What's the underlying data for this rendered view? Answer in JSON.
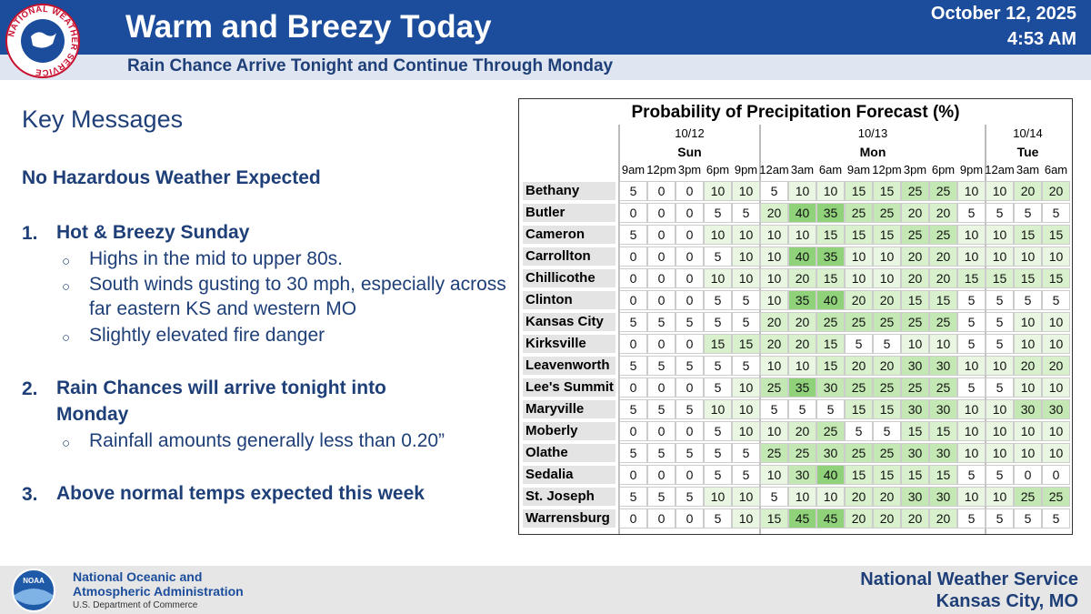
{
  "header": {
    "logo_text": "NATIONAL WEATHER SERVICE",
    "title": "Warm and Breezy Today",
    "subtitle": "Rain Chance Arrive Tonight and Continue Through Monday",
    "date": "October 12, 2025",
    "time": "4:53 AM"
  },
  "key_messages": {
    "title": "Key Messages",
    "headline": "No Hazardous Weather Expected",
    "items": [
      {
        "number": "1.",
        "text": "Hot & Breezy Sunday",
        "bullets": [
          "Highs in the mid to upper 80s.",
          "South winds gusting to 30 mph, especially across far eastern KS and western MO",
          "Slightly elevated fire danger"
        ]
      },
      {
        "number": "2.",
        "text": "Rain Chances will arrive tonight into Monday",
        "bullets": [
          "Rainfall amounts generally less than 0.20”"
        ]
      },
      {
        "number": "3.",
        "text": "Above normal temps expected this week",
        "bullets": []
      }
    ]
  },
  "table": {
    "title": "Probability of Precipitation Forecast (%)",
    "groups": [
      {
        "date": "10/12",
        "day": "Sun",
        "hours": [
          "9am",
          "12pm",
          "3pm",
          "6pm",
          "9pm"
        ]
      },
      {
        "date": "10/13",
        "day": "Mon",
        "hours": [
          "12am",
          "3am",
          "6am",
          "9am",
          "12pm",
          "3pm",
          "6pm",
          "9pm"
        ]
      },
      {
        "date": "10/14",
        "day": "Tue",
        "hours": [
          "12am",
          "3am",
          "6am"
        ]
      }
    ],
    "rows": [
      {
        "name": "Bethany",
        "values": [
          5,
          0,
          0,
          10,
          10,
          5,
          10,
          10,
          15,
          15,
          25,
          25,
          10,
          10,
          20,
          20
        ]
      },
      {
        "name": "Butler",
        "values": [
          0,
          0,
          0,
          5,
          5,
          20,
          40,
          35,
          25,
          25,
          20,
          20,
          5,
          5,
          5,
          5
        ]
      },
      {
        "name": "Cameron",
        "values": [
          5,
          0,
          0,
          10,
          10,
          10,
          10,
          15,
          15,
          15,
          25,
          25,
          10,
          10,
          15,
          15
        ]
      },
      {
        "name": "Carrollton",
        "values": [
          0,
          0,
          0,
          5,
          10,
          10,
          40,
          35,
          10,
          10,
          20,
          20,
          10,
          10,
          10,
          10
        ]
      },
      {
        "name": "Chillicothe",
        "values": [
          0,
          0,
          0,
          10,
          10,
          10,
          20,
          15,
          10,
          10,
          20,
          20,
          15,
          15,
          15,
          15
        ]
      },
      {
        "name": "Clinton",
        "values": [
          0,
          0,
          0,
          5,
          5,
          10,
          35,
          40,
          20,
          20,
          15,
          15,
          5,
          5,
          5,
          5
        ]
      },
      {
        "name": "Kansas City",
        "values": [
          5,
          5,
          5,
          5,
          5,
          20,
          20,
          25,
          25,
          25,
          25,
          25,
          5,
          5,
          10,
          10
        ]
      },
      {
        "name": "Kirksville",
        "values": [
          0,
          0,
          0,
          15,
          15,
          20,
          20,
          15,
          5,
          5,
          10,
          10,
          5,
          5,
          10,
          10
        ]
      },
      {
        "name": "Leavenworth",
        "values": [
          5,
          5,
          5,
          5,
          5,
          10,
          10,
          15,
          20,
          20,
          30,
          30,
          10,
          10,
          20,
          20
        ]
      },
      {
        "name": "Lee's Summit",
        "values": [
          0,
          0,
          0,
          5,
          10,
          25,
          35,
          30,
          25,
          25,
          25,
          25,
          5,
          5,
          10,
          10
        ]
      },
      {
        "name": "Maryville",
        "values": [
          5,
          5,
          5,
          10,
          10,
          5,
          5,
          5,
          15,
          15,
          30,
          30,
          10,
          10,
          30,
          30
        ]
      },
      {
        "name": "Moberly",
        "values": [
          0,
          0,
          0,
          5,
          10,
          10,
          20,
          25,
          5,
          5,
          15,
          15,
          10,
          10,
          10,
          10
        ]
      },
      {
        "name": "Olathe",
        "values": [
          5,
          5,
          5,
          5,
          5,
          25,
          25,
          30,
          25,
          25,
          30,
          30,
          10,
          10,
          10,
          10
        ]
      },
      {
        "name": "Sedalia",
        "values": [
          0,
          0,
          0,
          5,
          5,
          10,
          30,
          40,
          15,
          15,
          15,
          15,
          5,
          5,
          0,
          0
        ]
      },
      {
        "name": "St. Joseph",
        "values": [
          5,
          5,
          5,
          10,
          10,
          5,
          10,
          10,
          20,
          20,
          30,
          30,
          10,
          10,
          25,
          25
        ]
      },
      {
        "name": "Warrensburg",
        "values": [
          0,
          0,
          0,
          5,
          10,
          15,
          45,
          45,
          20,
          20,
          20,
          20,
          5,
          5,
          5,
          5
        ]
      }
    ]
  },
  "footer": {
    "noaa_logo": "NOAA",
    "agency_line1": "National Oceanic and",
    "agency_line2": "Atmospheric Administration",
    "department": "U.S. Department of Commerce",
    "office_line1": "National Weather Service",
    "office_line2": "Kansas City, MO"
  }
}
